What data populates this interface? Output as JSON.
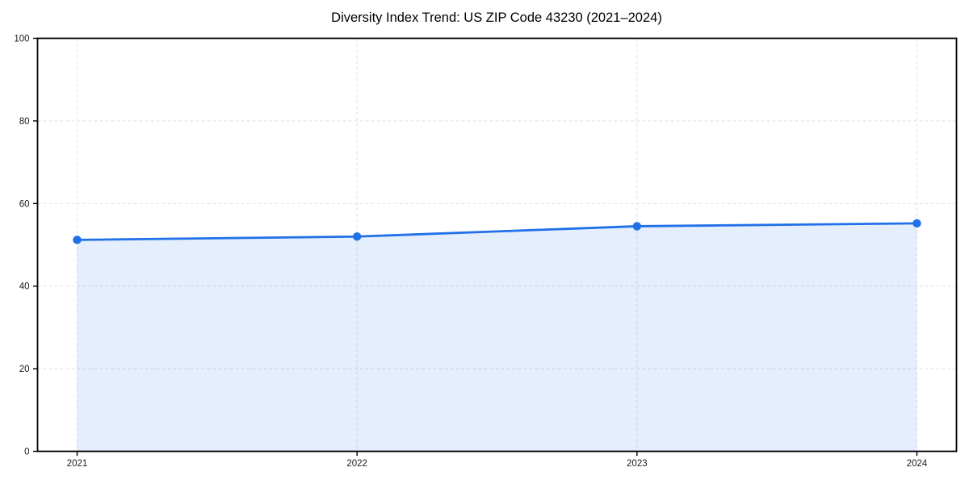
{
  "page": {
    "background": "#ffffff"
  },
  "chart_data": {
    "type": "area",
    "title": "Diversity Index Trend: US ZIP Code 43230 (2021–2024)",
    "categories": [
      "2021",
      "2022",
      "2023",
      "2024"
    ],
    "series": [
      {
        "name": "Diversity Index",
        "values": [
          51.2,
          52.0,
          54.5,
          55.2
        ]
      }
    ],
    "xlabel": "",
    "ylabel": "",
    "ylim": [
      0,
      100
    ],
    "yticks": [
      0,
      20,
      40,
      60,
      80,
      100
    ],
    "grid": true,
    "grid_style": "dashed",
    "legend_position": "none",
    "marker": "circle",
    "line_color": "#2070e8",
    "fill_opacity": 0.12,
    "grid_color": "#e0e0e0",
    "axis_color": "#000000",
    "tick_label_color": "#1a1a1a",
    "title_color": "#000000"
  }
}
